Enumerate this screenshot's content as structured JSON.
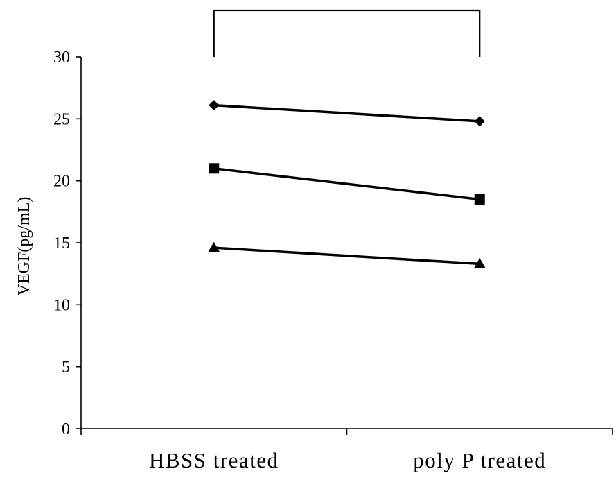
{
  "chart_data": {
    "type": "line",
    "title": "",
    "xlabel": "",
    "ylabel": "VEGF(pg/mL)",
    "categories": [
      "HBSS treated",
      "poly P treated"
    ],
    "ylim": [
      0,
      30
    ],
    "yticks": [
      "0",
      "5",
      "10",
      "15",
      "20",
      "25",
      "30"
    ],
    "grid": false,
    "legend": "none",
    "series": [
      {
        "marker": "diamond",
        "values": [
          26.1,
          24.8
        ]
      },
      {
        "marker": "square",
        "values": [
          21.0,
          18.5
        ]
      },
      {
        "marker": "triangle",
        "values": [
          14.6,
          13.3
        ]
      }
    ],
    "significance_bracket": {
      "from": "HBSS treated",
      "to": "poly P treated",
      "label": ""
    },
    "colors": {
      "line": "#000000",
      "marker": "#000000"
    }
  }
}
